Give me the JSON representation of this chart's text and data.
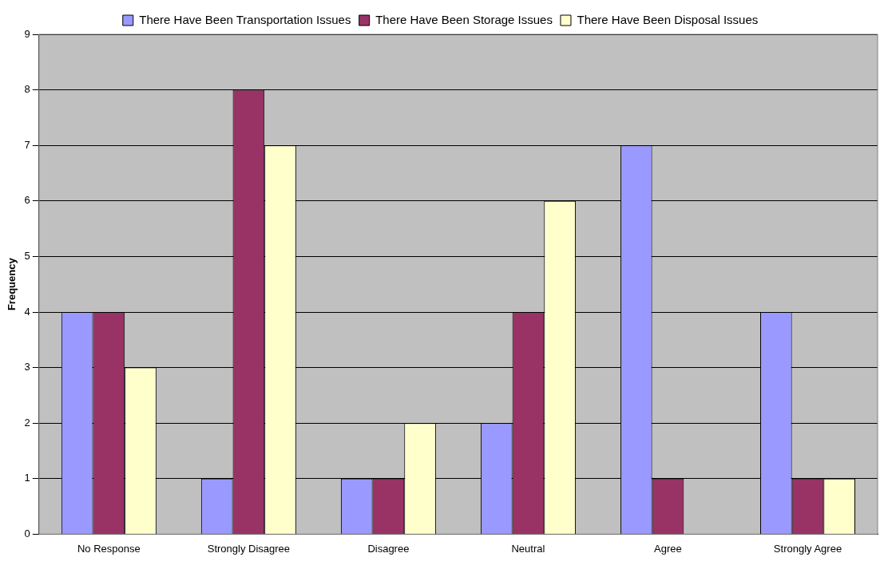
{
  "chart_data": {
    "type": "bar",
    "ylabel": "Frequency",
    "categories": [
      "No Response",
      "Strongly Disagree",
      "Disagree",
      "Neutral",
      "Agree",
      "Strongly Agree"
    ],
    "series": [
      {
        "name": "There Have Been Transportation Issues",
        "color": "#9999ff",
        "values": [
          4,
          1,
          1,
          2,
          7,
          4
        ]
      },
      {
        "name": "There Have Been Storage Issues",
        "color": "#993366",
        "values": [
          4,
          8,
          1,
          4,
          1,
          1
        ]
      },
      {
        "name": "There Have Been Disposal Issues",
        "color": "#ffffcc",
        "values": [
          3,
          7,
          2,
          6,
          0,
          1
        ]
      }
    ],
    "ylim": [
      0,
      9
    ],
    "yticks": [
      0,
      1,
      2,
      3,
      4,
      5,
      6,
      7,
      8,
      9
    ],
    "grid": "y",
    "legend": "top"
  }
}
